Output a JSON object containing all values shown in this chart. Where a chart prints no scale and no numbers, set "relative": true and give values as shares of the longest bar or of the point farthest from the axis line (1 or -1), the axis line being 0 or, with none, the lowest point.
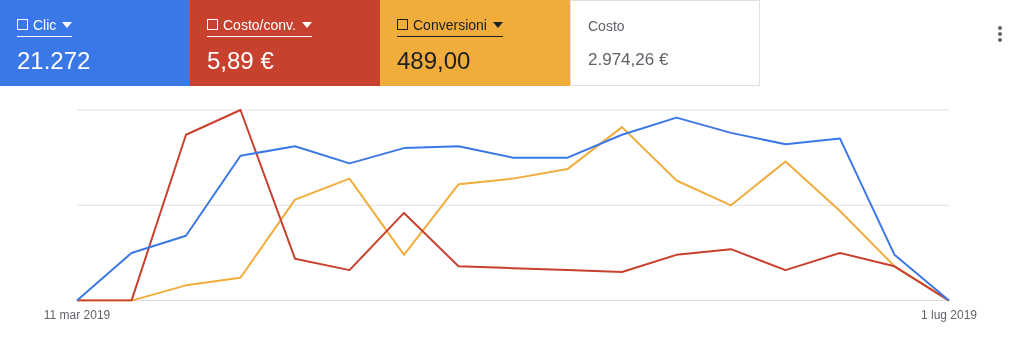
{
  "chart_data": {
    "type": "line",
    "relative": true,
    "categories": [
      "11 mar 2019",
      null,
      null,
      null,
      null,
      null,
      null,
      null,
      null,
      null,
      null,
      null,
      null,
      null,
      null,
      null,
      "1 lug 2019"
    ],
    "series": [
      {
        "name": "Clic",
        "color": "#3b78e7",
        "values": [
          0,
          0.25,
          0.34,
          0.76,
          0.81,
          0.72,
          0.8,
          0.81,
          0.75,
          0.75,
          0.87,
          0.96,
          0.88,
          0.82,
          0.85,
          0.24,
          0
        ]
      },
      {
        "name": "Costo/conv.",
        "color": "#c8412f",
        "values": [
          0,
          0,
          0.87,
          1,
          0.22,
          0.16,
          0.46,
          0.18,
          0.17,
          0.16,
          0.15,
          0.24,
          0.27,
          0.16,
          0.25,
          0.18,
          0
        ]
      },
      {
        "name": "Conversioni",
        "color": "#f0ad3c",
        "values": [
          0,
          0,
          0.08,
          0.12,
          0.53,
          0.64,
          0.24,
          0.61,
          0.64,
          0.69,
          0.91,
          0.63,
          0.5,
          0.73,
          0.47,
          0.18,
          0
        ]
      }
    ],
    "annotations": [
      "21.272",
      "5,89 €",
      "489,00",
      "Costo",
      "2.974,26 €"
    ],
    "ref_lines": [
      {
        "axis": "y",
        "value": 0.5,
        "color": "#e0e0e0"
      },
      {
        "axis": "y",
        "value": 1,
        "color": "#e0e0e0"
      }
    ],
    "legend": "top",
    "marker": "none",
    "line_style": "solid"
  }
}
